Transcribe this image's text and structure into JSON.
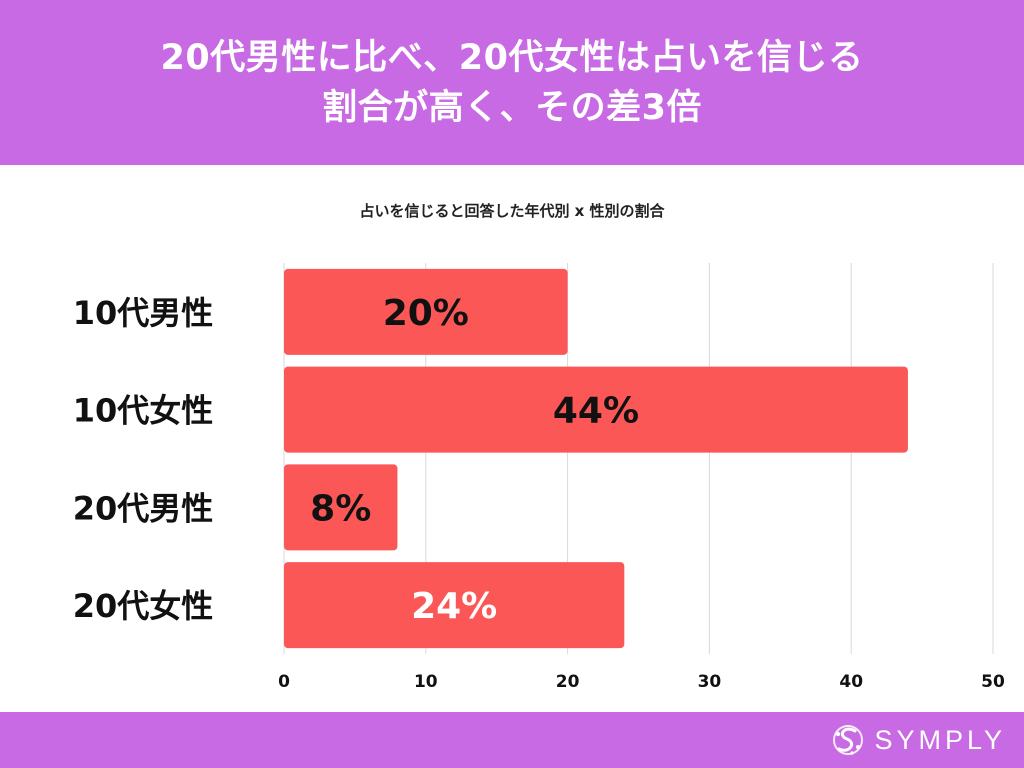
{
  "headline": {
    "line1": "20代男性に比べ、20代女性は占いを信じる",
    "line2": "割合が高く、その差3倍"
  },
  "brand": {
    "name": "SYMPLY"
  },
  "colors": {
    "banner": "#C76AE3",
    "bar": "#FB5757",
    "gridline": "#D9D9D9",
    "label_dark": "#111111",
    "label_light": "#FFFFFF"
  },
  "chart_data": {
    "type": "bar",
    "orientation": "horizontal",
    "title": "占いを信じると回答した年代別 x 性別の割合",
    "categories": [
      "10代男性",
      "10代女性",
      "20代男性",
      "20代女性"
    ],
    "values": [
      20,
      44,
      8,
      24
    ],
    "data_labels": [
      "20%",
      "44%",
      "8%",
      "24%"
    ],
    "xlim": [
      0,
      50
    ],
    "x_ticks": [
      "0",
      "10",
      "20",
      "30",
      "40",
      "50"
    ],
    "grid": true,
    "legend": "none"
  }
}
